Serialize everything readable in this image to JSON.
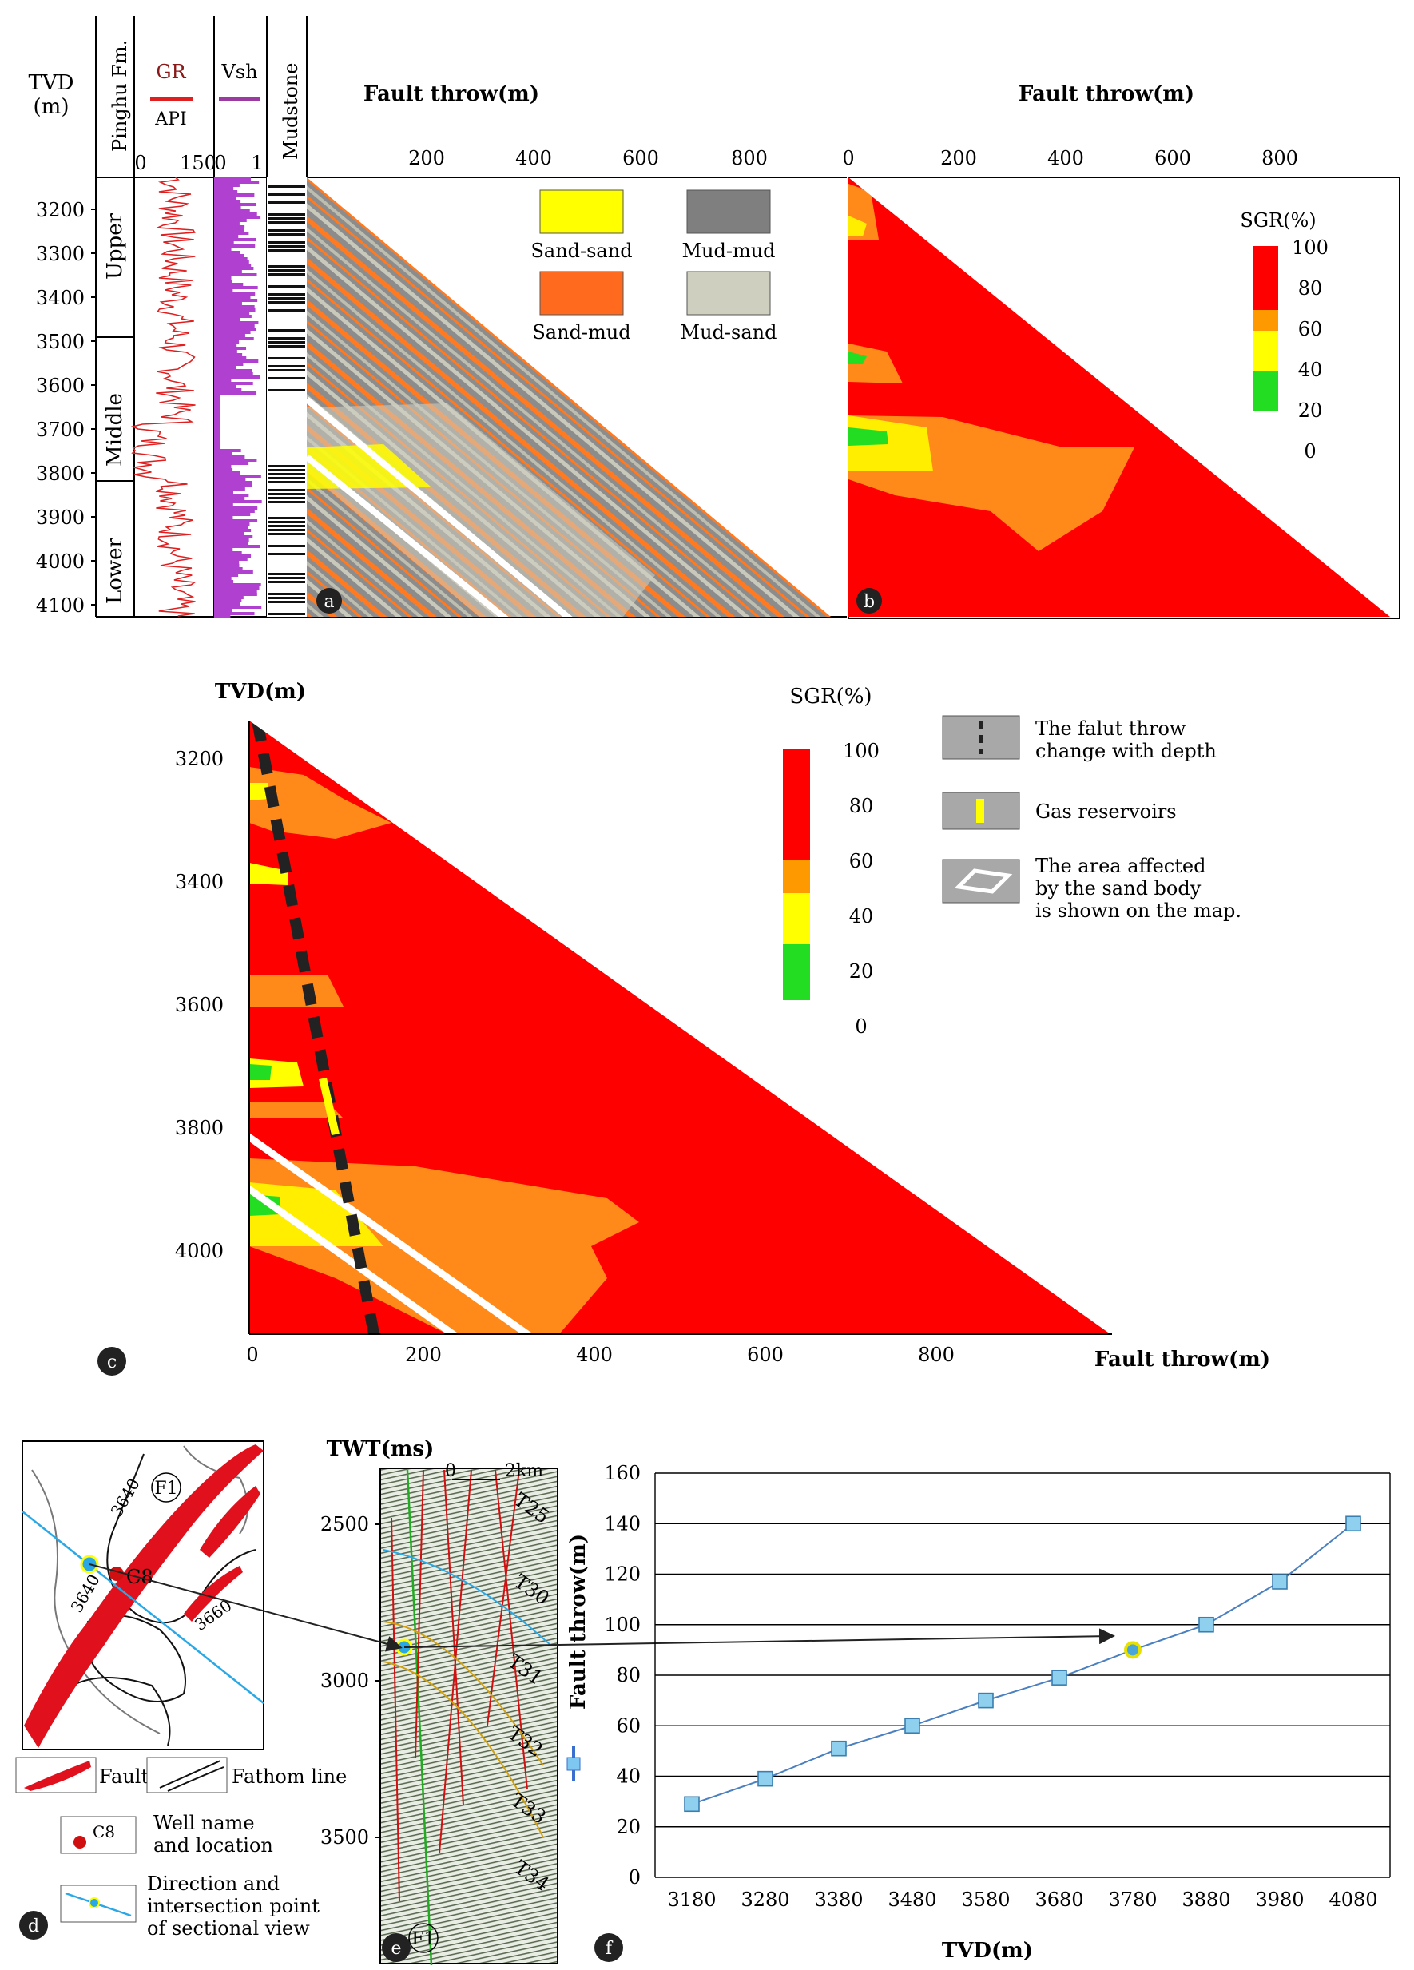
{
  "panel_labels": {
    "a": "a",
    "b": "b",
    "c": "c",
    "d": "d",
    "e": "e",
    "f": "f"
  },
  "top": {
    "tvd_label_1": "TVD",
    "tvd_label_2": "(m)",
    "formation_header": "Pinghu Fm.",
    "gr_label": "GR",
    "gr_unit": "API",
    "gr_ticks": [
      "0",
      "150"
    ],
    "vsh_label": "Vsh",
    "vsh_ticks": [
      "0",
      "1"
    ],
    "mudstone_label": "Mudstone",
    "depth_ticks": [
      "3200",
      "3300",
      "3400",
      "3500",
      "3600",
      "3700",
      "3800",
      "3900",
      "4000",
      "4100"
    ],
    "zones": [
      "Upper",
      "Middle",
      "Lower"
    ],
    "fault_throw_title_a": "Fault throw(m)",
    "fault_throw_title_b": "Fault throw(m)",
    "throw_ticks_a": [
      "200",
      "400",
      "600",
      "800"
    ],
    "throw_ticks_b": [
      "0",
      "200",
      "400",
      "600",
      "800"
    ],
    "juxtaposition_legend": [
      {
        "label": "Sand-sand",
        "color": "#ffff00"
      },
      {
        "label": "Mud-mud",
        "color": "#7f7f7f"
      },
      {
        "label": "Sand-mud",
        "color": "#ff6a1f"
      },
      {
        "label": "Mud-sand",
        "color": "#cfcfc0"
      }
    ]
  },
  "sgr_legend": {
    "title": "SGR(%)",
    "ticks": [
      "100",
      "80",
      "60",
      "40",
      "20",
      "0"
    ],
    "colors": [
      "#ff0000",
      "#ff9900",
      "#ffff00",
      "#22dd22"
    ]
  },
  "panel_c": {
    "ylabel": "TVD(m)",
    "xlabel": "Fault throw(m)",
    "y_ticks": [
      "3200",
      "3400",
      "3600",
      "3800",
      "4000"
    ],
    "x_ticks": [
      "0",
      "200",
      "400",
      "600",
      "800"
    ],
    "legend": [
      {
        "label_1": "The falut throw",
        "label_2": "change with depth",
        "key": "dashed-line"
      },
      {
        "label_1": "Gas reservoirs",
        "label_2": "",
        "key": "yellow-bar"
      },
      {
        "label_1": "The area affected",
        "label_2": "by the sand body",
        "label_3": "is shown on the map.",
        "key": "white-parallelogram"
      }
    ]
  },
  "panel_d": {
    "contours": [
      "3640",
      "3640",
      "3660"
    ],
    "fault_label": "F1",
    "well": "C8",
    "legend_fault": "Fault",
    "legend_fathom": "Fathom line",
    "legend_well_1": "Well name",
    "legend_well_2": "and location",
    "legend_dir_1": "Direction and",
    "legend_dir_2": "intersection point",
    "legend_dir_3": "of sectional view"
  },
  "panel_e": {
    "ylabel": "TWT(ms)",
    "y_ticks": [
      "2500",
      "3000",
      "3500"
    ],
    "scale_0": "0",
    "scale_2": "2km",
    "horizons": [
      "T25",
      "T30",
      "T31",
      "T32",
      "T33",
      "T34"
    ],
    "fault_label": "F1"
  },
  "chart_data": {
    "type": "line",
    "title": "",
    "xlabel": "TVD(m)",
    "ylabel": "Fault throw(m)",
    "x": [
      3180,
      3280,
      3380,
      3480,
      3580,
      3680,
      3780,
      3880,
      3980,
      4080
    ],
    "x_tick_labels": [
      "3180",
      "3280",
      "3380",
      "3480",
      "3580",
      "3680",
      "3780",
      "3880",
      "3980",
      "4080"
    ],
    "y_tick_labels": [
      "0",
      "20",
      "40",
      "60",
      "80",
      "100",
      "120",
      "140",
      "160"
    ],
    "ylim": [
      0,
      160
    ],
    "grid": true,
    "series": [
      {
        "name": "Fault throw",
        "values": [
          29,
          39,
          51,
          60,
          70,
          79,
          90,
          100,
          117,
          140
        ],
        "color": "#4aa6d8"
      }
    ],
    "highlight_index": 6
  }
}
